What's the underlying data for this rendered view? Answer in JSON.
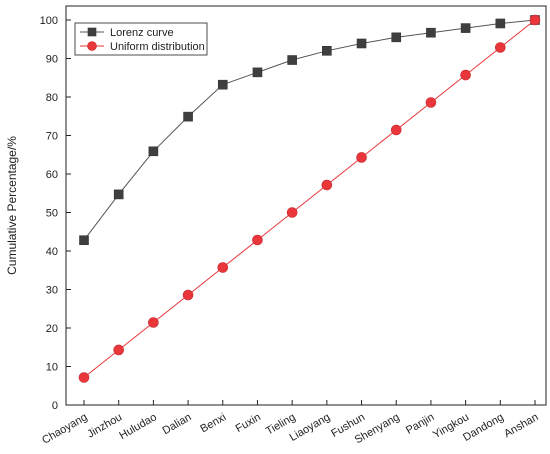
{
  "chart_data": {
    "type": "line",
    "title": "",
    "xlabel": "",
    "ylabel": "Cumulative Percentage/%",
    "ylim": [
      0,
      100
    ],
    "yticks": [
      0,
      10,
      20,
      30,
      40,
      50,
      60,
      70,
      80,
      90,
      100
    ],
    "grid": false,
    "legend_position": "top-left",
    "categories": [
      "Chaoyang",
      "Jinzhou",
      "Huludao",
      "Dalian",
      "Benxi",
      "Fuxin",
      "Tieling",
      "Liaoyang",
      "Fushun",
      "Shenyang",
      "Panjin",
      "Yingkou",
      "Dandong",
      "Anshan"
    ],
    "series": [
      {
        "name": "Lorenz curve",
        "marker": "square",
        "color": "#3f3f3f",
        "values": [
          42.8,
          54.7,
          65.9,
          74.9,
          83.2,
          86.4,
          89.6,
          92.0,
          93.9,
          95.5,
          96.7,
          97.9,
          99.1,
          100
        ]
      },
      {
        "name": "Uniform distribution",
        "marker": "circle",
        "color": "#e8363b",
        "values": [
          7.14,
          14.29,
          21.43,
          28.57,
          35.71,
          42.86,
          50.0,
          57.14,
          64.29,
          71.43,
          78.57,
          85.71,
          92.86,
          100
        ]
      }
    ]
  }
}
